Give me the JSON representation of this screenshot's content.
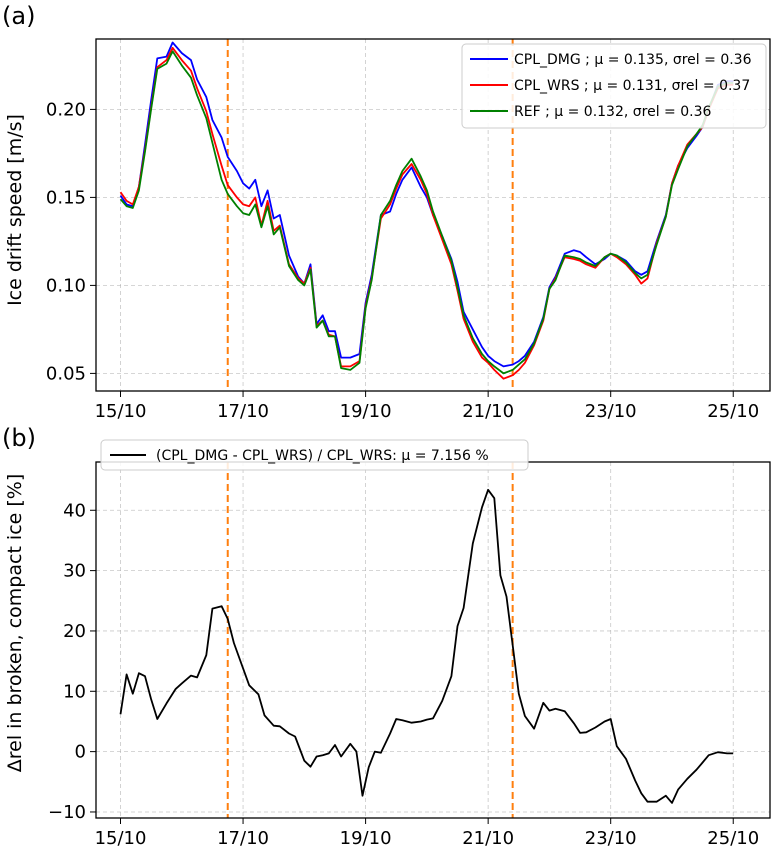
{
  "panels": [
    {
      "panel_label": "(a)",
      "ylabel": "Ice drift speed [m/s]",
      "legend": [
        {
          "name": "CPL_DMG",
          "text": "CPL_DMG ; μ = 0.135, σrel = 0.36"
        },
        {
          "name": "CPL_WRS",
          "text": "CPL_WRS ; μ = 0.131, σrel = 0.37"
        },
        {
          "name": "REF",
          "text": "REF ; μ = 0.132, σrel = 0.36"
        }
      ],
      "x_tick_labels": [
        "15/10",
        "17/10",
        "19/10",
        "21/10",
        "23/10",
        "25/10"
      ],
      "y_tick_labels": [
        "0.05",
        "0.10",
        "0.15",
        "0.20"
      ]
    },
    {
      "panel_label": "(b)",
      "ylabel": "Δrel in broken, compact ice [%]",
      "legend": [
        {
          "name": "(CPL_DMG - CPL_WRS) / CPL_WRS",
          "text": "(CPL_DMG - CPL_WRS) / CPL_WRS: μ = 7.156 %"
        }
      ],
      "x_tick_labels": [
        "15/10",
        "17/10",
        "19/10",
        "21/10",
        "23/10",
        "25/10"
      ],
      "y_tick_labels": [
        "−10",
        "0",
        "10",
        "20",
        "30",
        "40"
      ]
    }
  ],
  "chart_data": [
    {
      "type": "line",
      "title": "",
      "xlabel": "",
      "ylabel": "Ice drift speed [m/s]",
      "x_unit": "days since 15/10",
      "xlim": [
        -0.4,
        10.6
      ],
      "ylim": [
        0.04,
        0.24
      ],
      "grid": true,
      "legend_position": "top-right",
      "vlines": [
        1.75,
        6.4
      ],
      "vline_color": "#ff7f0e",
      "x": [
        0.0,
        0.1,
        0.2,
        0.3,
        0.4,
        0.5,
        0.6,
        0.75,
        0.85,
        1.0,
        1.15,
        1.25,
        1.4,
        1.5,
        1.65,
        1.75,
        1.9,
        2.0,
        2.1,
        2.2,
        2.3,
        2.4,
        2.5,
        2.6,
        2.75,
        2.9,
        3.0,
        3.1,
        3.2,
        3.3,
        3.4,
        3.5,
        3.6,
        3.75,
        3.9,
        4.0,
        4.1,
        4.25,
        4.4,
        4.5,
        4.6,
        4.75,
        4.9,
        5.0,
        5.1,
        5.25,
        5.4,
        5.5,
        5.6,
        5.75,
        5.9,
        6.0,
        6.1,
        6.25,
        6.4,
        6.5,
        6.6,
        6.75,
        6.9,
        7.0,
        7.1,
        7.25,
        7.4,
        7.5,
        7.6,
        7.75,
        7.9,
        8.0,
        8.1,
        8.25,
        8.4,
        8.5,
        8.6,
        8.75,
        8.9,
        9.0,
        9.1,
        9.25,
        9.4,
        9.5,
        9.6,
        9.75,
        9.9,
        10.0
      ],
      "series": [
        {
          "name": "CPL_DMG",
          "color": "#0000ff",
          "values": [
            0.151,
            0.146,
            0.145,
            0.156,
            0.18,
            0.205,
            0.229,
            0.23,
            0.238,
            0.232,
            0.228,
            0.217,
            0.207,
            0.194,
            0.184,
            0.173,
            0.165,
            0.158,
            0.155,
            0.16,
            0.145,
            0.154,
            0.138,
            0.14,
            0.117,
            0.105,
            0.101,
            0.112,
            0.078,
            0.083,
            0.074,
            0.074,
            0.059,
            0.059,
            0.061,
            0.09,
            0.106,
            0.14,
            0.142,
            0.152,
            0.16,
            0.167,
            0.156,
            0.15,
            0.14,
            0.128,
            0.115,
            0.102,
            0.085,
            0.075,
            0.065,
            0.06,
            0.057,
            0.054,
            0.055,
            0.057,
            0.06,
            0.068,
            0.082,
            0.099,
            0.105,
            0.118,
            0.12,
            0.119,
            0.116,
            0.112,
            0.115,
            0.118,
            0.117,
            0.114,
            0.108,
            0.106,
            0.108,
            0.125,
            0.14,
            0.158,
            0.168,
            0.178,
            0.185,
            0.19,
            0.2,
            0.214,
            0.216,
            0.216
          ]
        },
        {
          "name": "CPL_WRS",
          "color": "#ff0000",
          "values": [
            0.153,
            0.148,
            0.146,
            0.156,
            0.177,
            0.201,
            0.224,
            0.228,
            0.235,
            0.228,
            0.222,
            0.212,
            0.199,
            0.186,
            0.168,
            0.157,
            0.15,
            0.146,
            0.145,
            0.15,
            0.134,
            0.148,
            0.131,
            0.134,
            0.112,
            0.104,
            0.101,
            0.11,
            0.077,
            0.08,
            0.072,
            0.071,
            0.054,
            0.054,
            0.057,
            0.088,
            0.104,
            0.138,
            0.146,
            0.155,
            0.163,
            0.169,
            0.16,
            0.152,
            0.14,
            0.126,
            0.112,
            0.097,
            0.081,
            0.068,
            0.059,
            0.056,
            0.052,
            0.047,
            0.049,
            0.052,
            0.056,
            0.066,
            0.08,
            0.098,
            0.104,
            0.116,
            0.115,
            0.114,
            0.112,
            0.11,
            0.116,
            0.118,
            0.116,
            0.112,
            0.106,
            0.101,
            0.104,
            0.124,
            0.139,
            0.158,
            0.168,
            0.18,
            0.186,
            0.19,
            0.2,
            0.212,
            0.214,
            0.214
          ]
        },
        {
          "name": "REF",
          "color": "#008000",
          "values": [
            0.149,
            0.145,
            0.144,
            0.154,
            0.176,
            0.2,
            0.223,
            0.226,
            0.233,
            0.225,
            0.218,
            0.208,
            0.195,
            0.181,
            0.16,
            0.152,
            0.145,
            0.141,
            0.14,
            0.146,
            0.133,
            0.145,
            0.129,
            0.133,
            0.111,
            0.103,
            0.1,
            0.109,
            0.076,
            0.08,
            0.071,
            0.071,
            0.053,
            0.052,
            0.056,
            0.087,
            0.103,
            0.14,
            0.148,
            0.157,
            0.165,
            0.172,
            0.162,
            0.154,
            0.142,
            0.128,
            0.114,
            0.099,
            0.083,
            0.07,
            0.061,
            0.057,
            0.054,
            0.05,
            0.052,
            0.055,
            0.058,
            0.067,
            0.081,
            0.098,
            0.103,
            0.117,
            0.116,
            0.115,
            0.113,
            0.111,
            0.116,
            0.118,
            0.117,
            0.113,
            0.107,
            0.104,
            0.106,
            0.123,
            0.139,
            0.157,
            0.166,
            0.179,
            0.186,
            0.191,
            0.201,
            0.213,
            0.215,
            0.215
          ]
        }
      ]
    },
    {
      "type": "line",
      "title": "",
      "xlabel": "",
      "ylabel": "Δrel in broken, compact ice [%]",
      "x_unit": "days since 15/10",
      "xlim": [
        -0.4,
        10.6
      ],
      "ylim": [
        -11,
        48
      ],
      "grid": true,
      "legend_position": "top-left",
      "vlines": [
        1.75,
        6.4
      ],
      "vline_color": "#ff7f0e",
      "x": [
        0.0,
        0.1,
        0.2,
        0.3,
        0.4,
        0.5,
        0.6,
        0.75,
        0.9,
        1.0,
        1.15,
        1.25,
        1.4,
        1.5,
        1.65,
        1.75,
        1.85,
        2.0,
        2.1,
        2.25,
        2.35,
        2.5,
        2.6,
        2.75,
        2.85,
        3.0,
        3.1,
        3.2,
        3.3,
        3.4,
        3.5,
        3.6,
        3.75,
        3.85,
        3.95,
        4.05,
        4.15,
        4.25,
        4.4,
        4.5,
        4.6,
        4.75,
        4.9,
        5.0,
        5.1,
        5.25,
        5.4,
        5.5,
        5.6,
        5.75,
        5.9,
        6.0,
        6.1,
        6.2,
        6.3,
        6.4,
        6.5,
        6.6,
        6.75,
        6.9,
        7.0,
        7.1,
        7.25,
        7.4,
        7.5,
        7.6,
        7.75,
        7.9,
        8.0,
        8.1,
        8.25,
        8.4,
        8.5,
        8.6,
        8.75,
        8.9,
        9.0,
        9.1,
        9.25,
        9.4,
        9.5,
        9.6,
        9.75,
        9.9,
        10.0
      ],
      "series": [
        {
          "name": "(CPL_DMG - CPL_WRS) / CPL_WRS",
          "color": "#000000",
          "values": [
            6.2,
            12.8,
            9.6,
            13.0,
            12.5,
            8.7,
            5.4,
            8.0,
            10.4,
            11.3,
            12.6,
            12.3,
            16.0,
            23.7,
            24.1,
            22.0,
            18.0,
            13.8,
            11.0,
            9.5,
            6.0,
            4.3,
            4.2,
            3.0,
            2.5,
            -1.5,
            -2.5,
            -0.8,
            -0.6,
            -0.3,
            1.1,
            -0.8,
            1.3,
            0.0,
            -7.3,
            -2.6,
            0.0,
            -0.2,
            3.0,
            5.4,
            5.2,
            4.8,
            5.0,
            5.3,
            5.5,
            8.4,
            12.5,
            20.8,
            23.8,
            34.5,
            40.5,
            43.4,
            42.0,
            29.2,
            25.7,
            17.6,
            9.6,
            5.9,
            3.8,
            8.1,
            6.8,
            7.1,
            6.7,
            4.7,
            3.1,
            3.2,
            4.0,
            5.0,
            5.4,
            0.9,
            -1.2,
            -4.8,
            -6.9,
            -8.3,
            -8.3,
            -7.3,
            -8.5,
            -6.3,
            -4.5,
            -3.0,
            -1.8,
            -0.6,
            -0.1,
            -0.3,
            -0.3
          ]
        }
      ]
    }
  ]
}
